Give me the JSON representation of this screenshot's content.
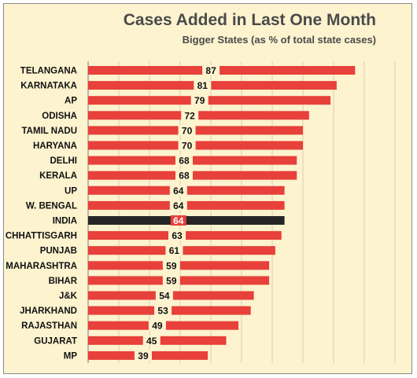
{
  "chart_data": {
    "type": "bar",
    "orientation": "horizontal",
    "title": "Cases Added in Last One Month",
    "subtitle": "Bigger States (as % of total state cases)",
    "categories": [
      "TELANGANA",
      "KARNATAKA",
      "AP",
      "ODISHA",
      "TAMIL NADU",
      "HARYANA",
      "DELHI",
      "KERALA",
      "UP",
      "W. BENGAL",
      "INDIA",
      "CHHATTISGARH",
      "PUNJAB",
      "MAHARASHTRA",
      "BIHAR",
      "J&K",
      "JHARKHAND",
      "RAJASTHAN",
      "GUJARAT",
      "MP"
    ],
    "values": [
      87,
      81,
      79,
      72,
      70,
      70,
      68,
      68,
      64,
      64,
      64,
      63,
      61,
      59,
      59,
      54,
      53,
      49,
      45,
      39
    ],
    "highlight_category": "INDIA",
    "bar_color": "#e8403a",
    "highlight_color": "#262626",
    "grid": "vertical",
    "xlim": [
      0,
      100
    ]
  }
}
